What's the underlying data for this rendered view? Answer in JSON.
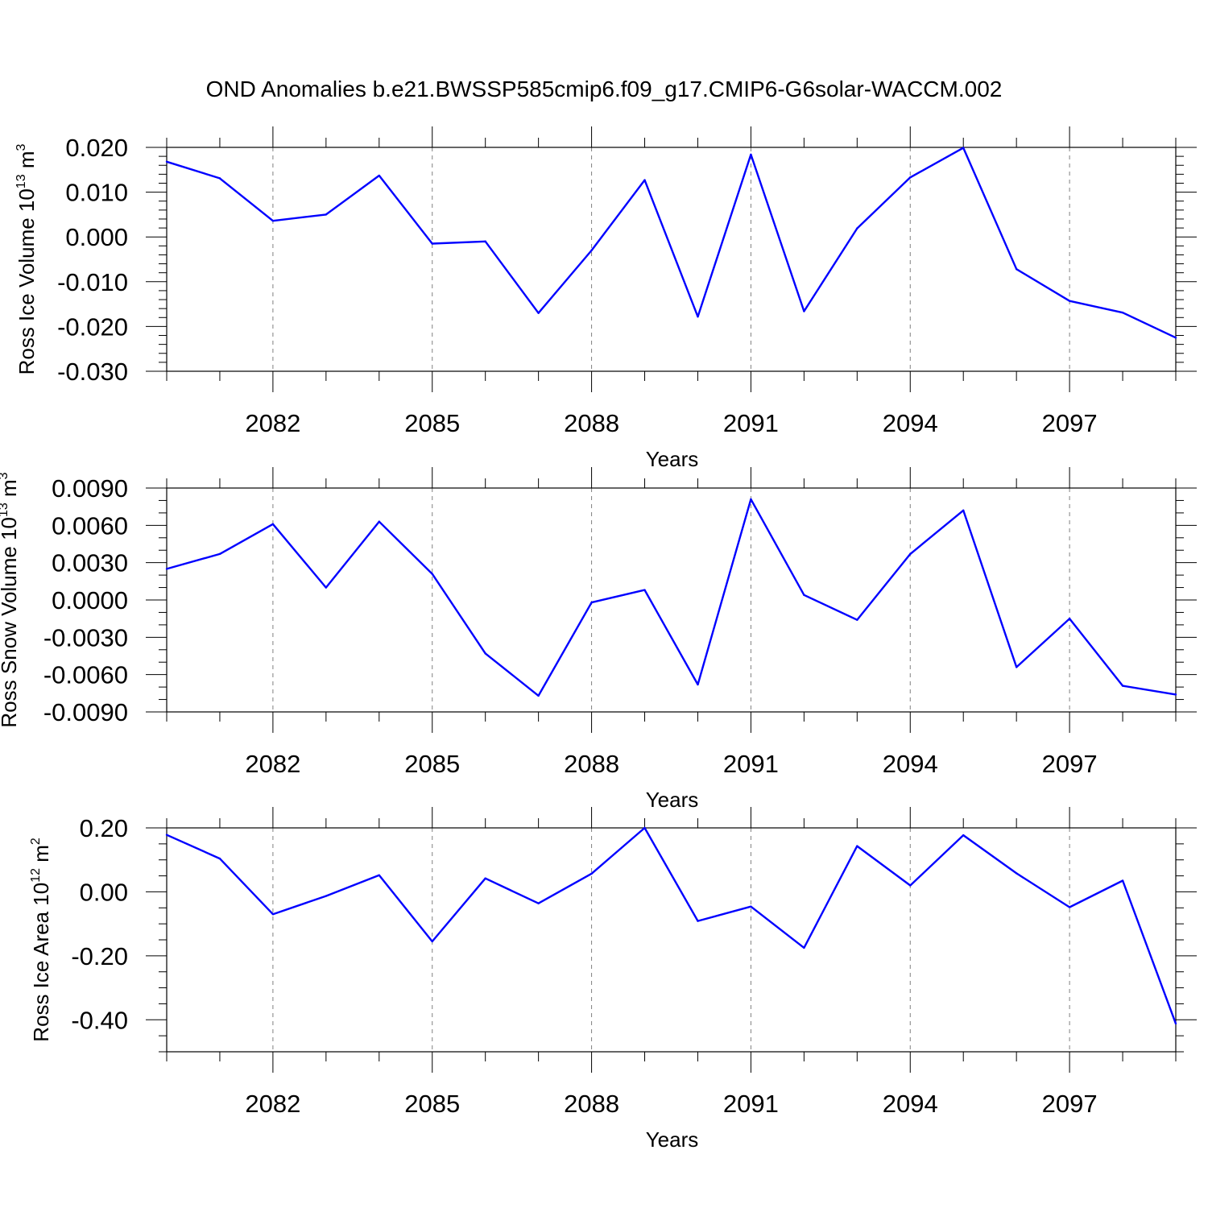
{
  "figure": {
    "title": "OND Anomalies b.e21.BWSSP585cmip6.f09_g17.CMIP6-G6solar-WACCM.002",
    "line_color": "#0000ff"
  },
  "chart_data": [
    {
      "type": "line",
      "xlabel": "Years",
      "ylabel": "Ross Ice Volume 10",
      "ylabel_exp": "13",
      "ylabel_unit": " m",
      "ylabel_unit_exp": "3",
      "xlim": [
        2080,
        2099
      ],
      "ylim": [
        -0.03,
        0.02
      ],
      "x_ticks": [
        2082,
        2085,
        2088,
        2091,
        2094,
        2097
      ],
      "x_tick_labels": [
        "2082",
        "2085",
        "2088",
        "2091",
        "2094",
        "2097"
      ],
      "y_ticks": [
        0.02,
        0.01,
        0.0,
        -0.01,
        -0.02,
        -0.03
      ],
      "y_tick_labels": [
        "0.020",
        "0.010",
        "0.000",
        "-0.010",
        "-0.020",
        "-0.030"
      ],
      "y_minor_step": 0.002,
      "grid": "vertical dashed at major x ticks",
      "x": [
        2080,
        2081,
        2082,
        2083,
        2084,
        2085,
        2086,
        2087,
        2088,
        2089,
        2090,
        2091,
        2092,
        2093,
        2094,
        2095,
        2096,
        2097,
        2098,
        2099
      ],
      "series": [
        {
          "values": [
            0.0168,
            0.0131,
            0.0036,
            0.005,
            0.0137,
            -0.0015,
            -0.001,
            -0.017,
            -0.003,
            0.0127,
            -0.0178,
            0.0184,
            -0.0166,
            0.0019,
            0.0133,
            0.0199,
            -0.0072,
            -0.0143,
            -0.0169,
            -0.0225
          ]
        }
      ]
    },
    {
      "type": "line",
      "xlabel": "Years",
      "ylabel": "Ross Snow Volume 10",
      "ylabel_exp": "13",
      "ylabel_unit": " m",
      "ylabel_unit_exp": "3",
      "xlim": [
        2080,
        2099
      ],
      "ylim": [
        -0.009,
        0.009
      ],
      "x_ticks": [
        2082,
        2085,
        2088,
        2091,
        2094,
        2097
      ],
      "x_tick_labels": [
        "2082",
        "2085",
        "2088",
        "2091",
        "2094",
        "2097"
      ],
      "y_ticks": [
        0.009,
        0.006,
        0.003,
        0.0,
        -0.003,
        -0.006,
        -0.009
      ],
      "y_tick_labels": [
        "0.0090",
        "0.0060",
        "0.0030",
        "0.0000",
        "-0.0030",
        "-0.0060",
        "-0.0090"
      ],
      "y_minor_step": 0.001,
      "grid": "vertical dashed at major x ticks",
      "x": [
        2080,
        2081,
        2082,
        2083,
        2084,
        2085,
        2086,
        2087,
        2088,
        2089,
        2090,
        2091,
        2092,
        2093,
        2094,
        2095,
        2096,
        2097,
        2098,
        2099
      ],
      "series": [
        {
          "values": [
            0.0025,
            0.0037,
            0.0061,
            0.001,
            0.0063,
            0.0021,
            -0.0043,
            -0.0077,
            -0.0002,
            0.0008,
            -0.0068,
            0.0081,
            0.0004,
            -0.0016,
            0.0037,
            0.0072,
            -0.0054,
            -0.0015,
            -0.0069,
            -0.0076
          ]
        }
      ]
    },
    {
      "type": "line",
      "xlabel": "Years",
      "ylabel": "Ross Ice Area 10",
      "ylabel_exp": "12",
      "ylabel_unit": " m",
      "ylabel_unit_exp": "2",
      "xlim": [
        2080,
        2099
      ],
      "ylim": [
        -0.5,
        0.2
      ],
      "x_ticks": [
        2082,
        2085,
        2088,
        2091,
        2094,
        2097
      ],
      "x_tick_labels": [
        "2082",
        "2085",
        "2088",
        "2091",
        "2094",
        "2097"
      ],
      "y_ticks": [
        0.2,
        0.0,
        -0.2,
        -0.4
      ],
      "y_tick_labels": [
        "0.20",
        "0.00",
        "-0.20",
        "-0.40"
      ],
      "y_minor_step": 0.05,
      "grid": "vertical dashed at major x ticks",
      "x": [
        2080,
        2081,
        2082,
        2083,
        2084,
        2085,
        2086,
        2087,
        2088,
        2089,
        2090,
        2091,
        2092,
        2093,
        2094,
        2095,
        2096,
        2097,
        2098,
        2099
      ],
      "series": [
        {
          "values": [
            0.178,
            0.104,
            -0.07,
            -0.013,
            0.052,
            -0.155,
            0.042,
            -0.036,
            0.057,
            0.2,
            -0.091,
            -0.046,
            -0.175,
            0.143,
            0.02,
            0.177,
            0.058,
            -0.048,
            0.035,
            -0.412
          ]
        }
      ]
    }
  ]
}
